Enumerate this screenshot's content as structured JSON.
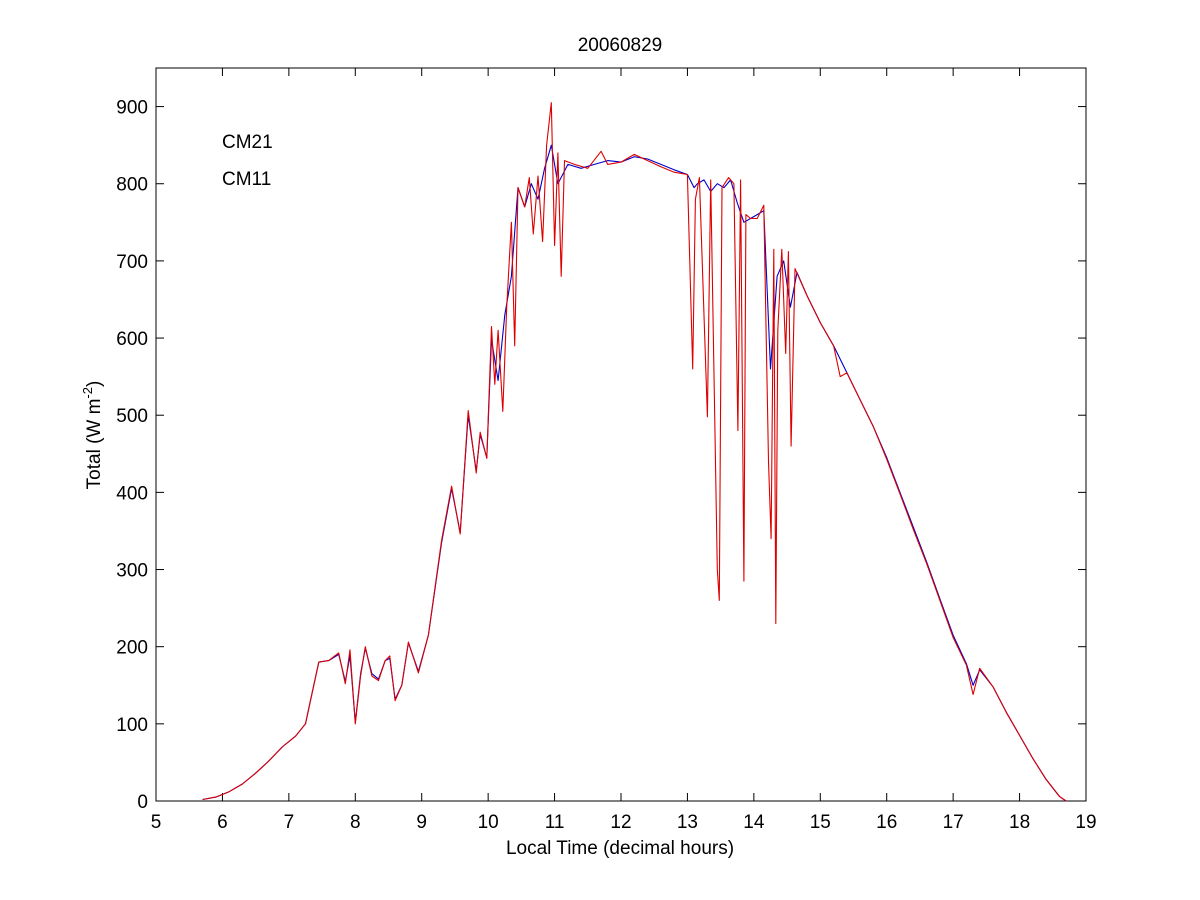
{
  "chart_data": {
    "type": "line",
    "title": "20060829",
    "xlabel": "Local Time (decimal hours)",
    "ylabel": {
      "base": "Total (W m",
      "superscript": "-2",
      "close": ")"
    },
    "xlim": [
      5,
      19
    ],
    "ylim": [
      0,
      950
    ],
    "xticks": [
      5,
      6,
      7,
      8,
      9,
      10,
      11,
      12,
      13,
      14,
      15,
      16,
      17,
      18,
      19
    ],
    "yticks": [
      0,
      100,
      200,
      300,
      400,
      500,
      600,
      700,
      800,
      900
    ],
    "grid": false,
    "legend_placement": "top-left",
    "series": [
      {
        "name": "CM21",
        "color": "#0000cc",
        "points": [
          [
            5.7,
            2
          ],
          [
            5.9,
            5
          ],
          [
            6.1,
            12
          ],
          [
            6.3,
            22
          ],
          [
            6.5,
            36
          ],
          [
            6.7,
            52
          ],
          [
            6.9,
            70
          ],
          [
            7.1,
            84
          ],
          [
            7.25,
            100
          ],
          [
            7.35,
            140
          ],
          [
            7.45,
            180
          ],
          [
            7.6,
            182
          ],
          [
            7.75,
            190
          ],
          [
            7.85,
            155
          ],
          [
            7.92,
            188
          ],
          [
            8.0,
            102
          ],
          [
            8.08,
            165
          ],
          [
            8.15,
            198
          ],
          [
            8.25,
            165
          ],
          [
            8.35,
            158
          ],
          [
            8.45,
            182
          ],
          [
            8.52,
            185
          ],
          [
            8.6,
            132
          ],
          [
            8.7,
            150
          ],
          [
            8.8,
            205
          ],
          [
            8.95,
            168
          ],
          [
            9.1,
            215
          ],
          [
            9.3,
            335
          ],
          [
            9.45,
            405
          ],
          [
            9.58,
            348
          ],
          [
            9.7,
            500
          ],
          [
            9.82,
            428
          ],
          [
            9.88,
            475
          ],
          [
            9.98,
            445
          ],
          [
            10.05,
            598
          ],
          [
            10.15,
            545
          ],
          [
            10.25,
            630
          ],
          [
            10.35,
            680
          ],
          [
            10.45,
            795
          ],
          [
            10.55,
            770
          ],
          [
            10.65,
            800
          ],
          [
            10.75,
            780
          ],
          [
            10.85,
            820
          ],
          [
            10.95,
            850
          ],
          [
            11.05,
            800
          ],
          [
            11.2,
            825
          ],
          [
            11.4,
            820
          ],
          [
            11.6,
            825
          ],
          [
            11.8,
            830
          ],
          [
            12.0,
            828
          ],
          [
            12.2,
            835
          ],
          [
            12.4,
            832
          ],
          [
            12.6,
            825
          ],
          [
            12.8,
            818
          ],
          [
            13.0,
            812
          ],
          [
            13.1,
            795
          ],
          [
            13.15,
            800
          ],
          [
            13.25,
            805
          ],
          [
            13.35,
            790
          ],
          [
            13.45,
            800
          ],
          [
            13.55,
            795
          ],
          [
            13.65,
            805
          ],
          [
            13.75,
            775
          ],
          [
            13.85,
            750
          ],
          [
            13.95,
            755
          ],
          [
            14.05,
            760
          ],
          [
            14.15,
            765
          ],
          [
            14.25,
            560
          ],
          [
            14.35,
            680
          ],
          [
            14.45,
            700
          ],
          [
            14.55,
            640
          ],
          [
            14.65,
            685
          ],
          [
            14.8,
            655
          ],
          [
            15.0,
            620
          ],
          [
            15.2,
            590
          ],
          [
            15.4,
            555
          ],
          [
            15.6,
            520
          ],
          [
            15.8,
            485
          ],
          [
            16.0,
            445
          ],
          [
            16.2,
            400
          ],
          [
            16.4,
            355
          ],
          [
            16.6,
            310
          ],
          [
            16.8,
            262
          ],
          [
            17.0,
            215
          ],
          [
            17.2,
            178
          ],
          [
            17.3,
            150
          ],
          [
            17.4,
            170
          ],
          [
            17.6,
            148
          ],
          [
            17.8,
            115
          ],
          [
            18.0,
            85
          ],
          [
            18.2,
            55
          ],
          [
            18.4,
            28
          ],
          [
            18.6,
            6
          ],
          [
            18.7,
            0
          ]
        ]
      },
      {
        "name": "CM11",
        "color": "#dd0000",
        "points": [
          [
            5.7,
            2
          ],
          [
            5.9,
            5
          ],
          [
            6.1,
            12
          ],
          [
            6.3,
            22
          ],
          [
            6.5,
            36
          ],
          [
            6.7,
            52
          ],
          [
            6.9,
            70
          ],
          [
            7.1,
            84
          ],
          [
            7.25,
            100
          ],
          [
            7.35,
            140
          ],
          [
            7.45,
            180
          ],
          [
            7.6,
            182
          ],
          [
            7.75,
            192
          ],
          [
            7.85,
            152
          ],
          [
            7.92,
            196
          ],
          [
            8.0,
            100
          ],
          [
            8.08,
            162
          ],
          [
            8.15,
            200
          ],
          [
            8.25,
            162
          ],
          [
            8.35,
            156
          ],
          [
            8.45,
            182
          ],
          [
            8.52,
            188
          ],
          [
            8.6,
            130
          ],
          [
            8.7,
            150
          ],
          [
            8.8,
            206
          ],
          [
            8.95,
            166
          ],
          [
            9.1,
            215
          ],
          [
            9.3,
            338
          ],
          [
            9.45,
            408
          ],
          [
            9.58,
            346
          ],
          [
            9.7,
            506
          ],
          [
            9.82,
            425
          ],
          [
            9.88,
            478
          ],
          [
            9.98,
            444
          ],
          [
            10.05,
            615
          ],
          [
            10.1,
            540
          ],
          [
            10.15,
            610
          ],
          [
            10.22,
            505
          ],
          [
            10.28,
            640
          ],
          [
            10.35,
            750
          ],
          [
            10.4,
            590
          ],
          [
            10.45,
            795
          ],
          [
            10.55,
            770
          ],
          [
            10.62,
            808
          ],
          [
            10.68,
            735
          ],
          [
            10.75,
            810
          ],
          [
            10.82,
            725
          ],
          [
            10.88,
            850
          ],
          [
            10.95,
            905
          ],
          [
            11.0,
            720
          ],
          [
            11.05,
            840
          ],
          [
            11.1,
            680
          ],
          [
            11.15,
            830
          ],
          [
            11.3,
            825
          ],
          [
            11.5,
            820
          ],
          [
            11.7,
            842
          ],
          [
            11.8,
            825
          ],
          [
            12.0,
            828
          ],
          [
            12.2,
            838
          ],
          [
            12.4,
            830
          ],
          [
            12.6,
            822
          ],
          [
            12.8,
            815
          ],
          [
            13.0,
            812
          ],
          [
            13.08,
            560
          ],
          [
            13.12,
            780
          ],
          [
            13.18,
            808
          ],
          [
            13.3,
            498
          ],
          [
            13.35,
            805
          ],
          [
            13.45,
            300
          ],
          [
            13.48,
            260
          ],
          [
            13.52,
            795
          ],
          [
            13.62,
            808
          ],
          [
            13.7,
            800
          ],
          [
            13.76,
            480
          ],
          [
            13.8,
            805
          ],
          [
            13.85,
            285
          ],
          [
            13.88,
            760
          ],
          [
            13.95,
            755
          ],
          [
            14.05,
            755
          ],
          [
            14.15,
            772
          ],
          [
            14.22,
            440
          ],
          [
            14.26,
            340
          ],
          [
            14.3,
            715
          ],
          [
            14.33,
            230
          ],
          [
            14.36,
            610
          ],
          [
            14.42,
            715
          ],
          [
            14.48,
            580
          ],
          [
            14.52,
            712
          ],
          [
            14.56,
            460
          ],
          [
            14.62,
            690
          ],
          [
            14.8,
            655
          ],
          [
            15.0,
            620
          ],
          [
            15.2,
            590
          ],
          [
            15.3,
            550
          ],
          [
            15.4,
            555
          ],
          [
            15.6,
            520
          ],
          [
            15.8,
            485
          ],
          [
            16.0,
            443
          ],
          [
            16.2,
            398
          ],
          [
            16.4,
            352
          ],
          [
            16.6,
            308
          ],
          [
            16.8,
            260
          ],
          [
            17.0,
            212
          ],
          [
            17.2,
            176
          ],
          [
            17.3,
            138
          ],
          [
            17.4,
            172
          ],
          [
            17.6,
            148
          ],
          [
            17.8,
            115
          ],
          [
            18.0,
            85
          ],
          [
            18.2,
            55
          ],
          [
            18.4,
            28
          ],
          [
            18.6,
            6
          ],
          [
            18.7,
            0
          ]
        ]
      }
    ]
  }
}
